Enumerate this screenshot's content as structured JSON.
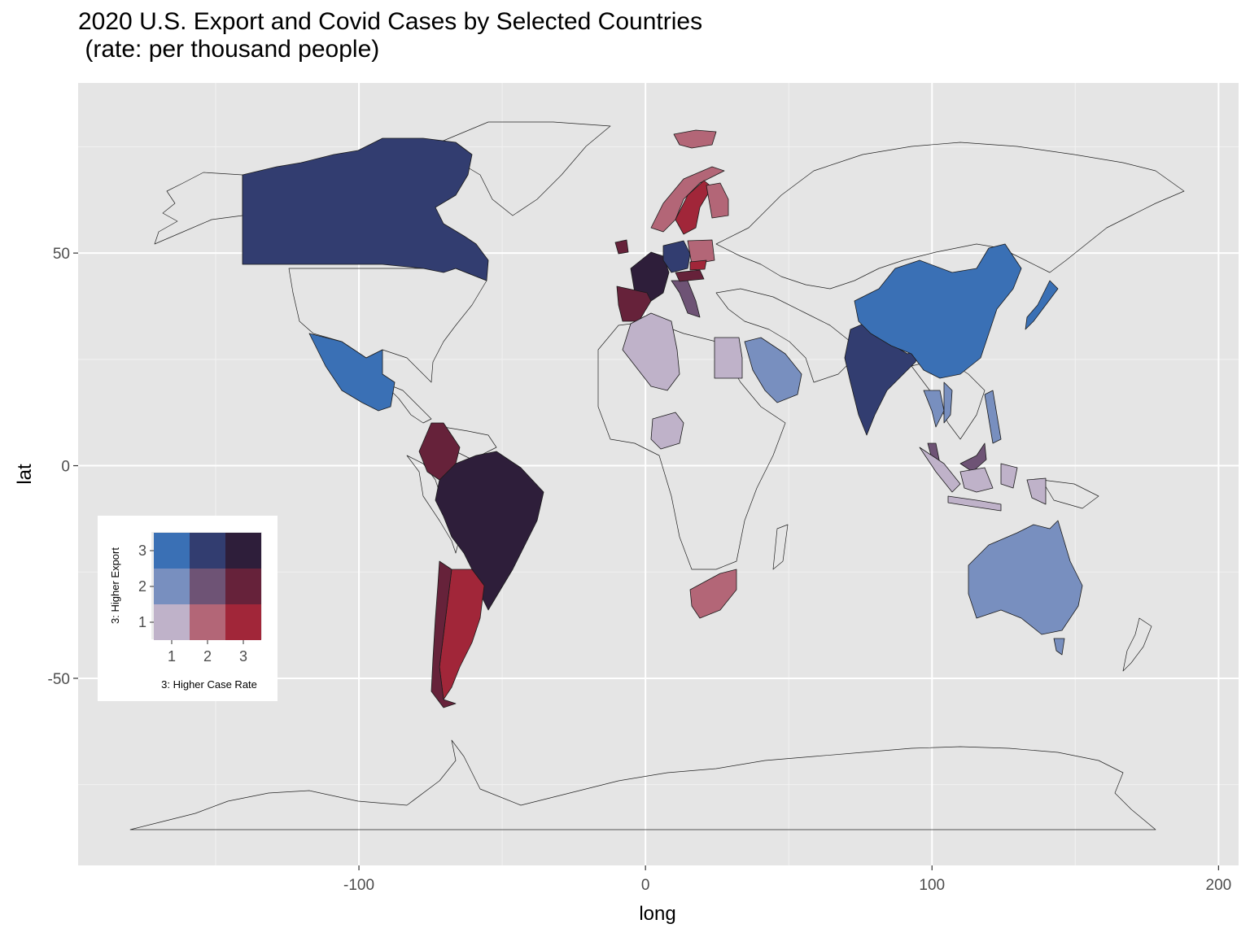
{
  "title_line1": "2020 U.S. Export and Covid Cases by Selected Countries",
  "title_line2": " (rate: per thousand people)",
  "colors": {
    "panel_bg": "#e5e5e5",
    "grid_major": "#ffffff",
    "grid_minor": "#f2f2f2",
    "e1c1": "#bfb2c9",
    "e1c2": "#b36677",
    "e1c3": "#a12639",
    "e2c1": "#788fbf",
    "e2c2": "#6e5375",
    "e2c3": "#66223a",
    "e3c1": "#3a70b5",
    "e3c2": "#323d70",
    "e3c3": "#2e1e3a"
  },
  "chart_data": {
    "type": "map",
    "title": "2020 U.S. Export and Covid Cases by Selected Countries\n (rate: per thousand people)",
    "xlabel": "long",
    "ylabel": "lat",
    "xlim": [
      -198,
      207
    ],
    "ylim": [
      -94,
      90
    ],
    "x_ticks": [
      -100,
      0,
      100,
      200
    ],
    "x_tick_labels": [
      "-100",
      "0",
      "100",
      "200"
    ],
    "y_ticks": [
      -50,
      0,
      50
    ],
    "y_tick_labels": [
      "-50",
      "0",
      "50"
    ],
    "grid": true,
    "legend": {
      "type": "bivariate",
      "placement": "bottom-left inset",
      "x_title": "3: Higher Case Rate",
      "y_title": "3: Higher Export",
      "x_levels": [
        "1",
        "2",
        "3"
      ],
      "y_levels": [
        "1",
        "2",
        "3"
      ]
    },
    "countries": [
      {
        "name": "Canada",
        "export_class": 3,
        "case_class": 2
      },
      {
        "name": "Mexico",
        "export_class": 3,
        "case_class": 1
      },
      {
        "name": "Colombia",
        "export_class": 2,
        "case_class": 3
      },
      {
        "name": "Brazil",
        "export_class": 3,
        "case_class": 3
      },
      {
        "name": "Argentina",
        "export_class": 1,
        "case_class": 3
      },
      {
        "name": "Chile",
        "export_class": 2,
        "case_class": 3
      },
      {
        "name": "Ireland",
        "export_class": 2,
        "case_class": 3
      },
      {
        "name": "France",
        "export_class": 3,
        "case_class": 3
      },
      {
        "name": "Spain",
        "export_class": 2,
        "case_class": 3
      },
      {
        "name": "Germany",
        "export_class": 3,
        "case_class": 2
      },
      {
        "name": "Italy",
        "export_class": 2,
        "case_class": 2
      },
      {
        "name": "Poland",
        "export_class": 1,
        "case_class": 2
      },
      {
        "name": "Austria",
        "export_class": 2,
        "case_class": 3
      },
      {
        "name": "Czechia",
        "export_class": 1,
        "case_class": 3
      },
      {
        "name": "Norway",
        "export_class": 1,
        "case_class": 2
      },
      {
        "name": "Sweden",
        "export_class": 1,
        "case_class": 3
      },
      {
        "name": "Finland",
        "export_class": 1,
        "case_class": 2
      },
      {
        "name": "Svalbard",
        "export_class": 1,
        "case_class": 2
      },
      {
        "name": "Algeria",
        "export_class": 1,
        "case_class": 1
      },
      {
        "name": "Egypt",
        "export_class": 1,
        "case_class": 1
      },
      {
        "name": "Nigeria",
        "export_class": 1,
        "case_class": 1
      },
      {
        "name": "South Africa",
        "export_class": 1,
        "case_class": 2
      },
      {
        "name": "Saudi Arabia",
        "export_class": 2,
        "case_class": 1
      },
      {
        "name": "India",
        "export_class": 3,
        "case_class": 2
      },
      {
        "name": "China",
        "export_class": 3,
        "case_class": 1
      },
      {
        "name": "Japan",
        "export_class": 3,
        "case_class": 1
      },
      {
        "name": "Thailand",
        "export_class": 2,
        "case_class": 1
      },
      {
        "name": "Vietnam",
        "export_class": 2,
        "case_class": 1
      },
      {
        "name": "Philippines",
        "export_class": 2,
        "case_class": 1
      },
      {
        "name": "Malaysia",
        "export_class": 2,
        "case_class": 2
      },
      {
        "name": "Indonesia",
        "export_class": 1,
        "case_class": 1
      },
      {
        "name": "Australia",
        "export_class": 2,
        "case_class": 1
      }
    ]
  }
}
